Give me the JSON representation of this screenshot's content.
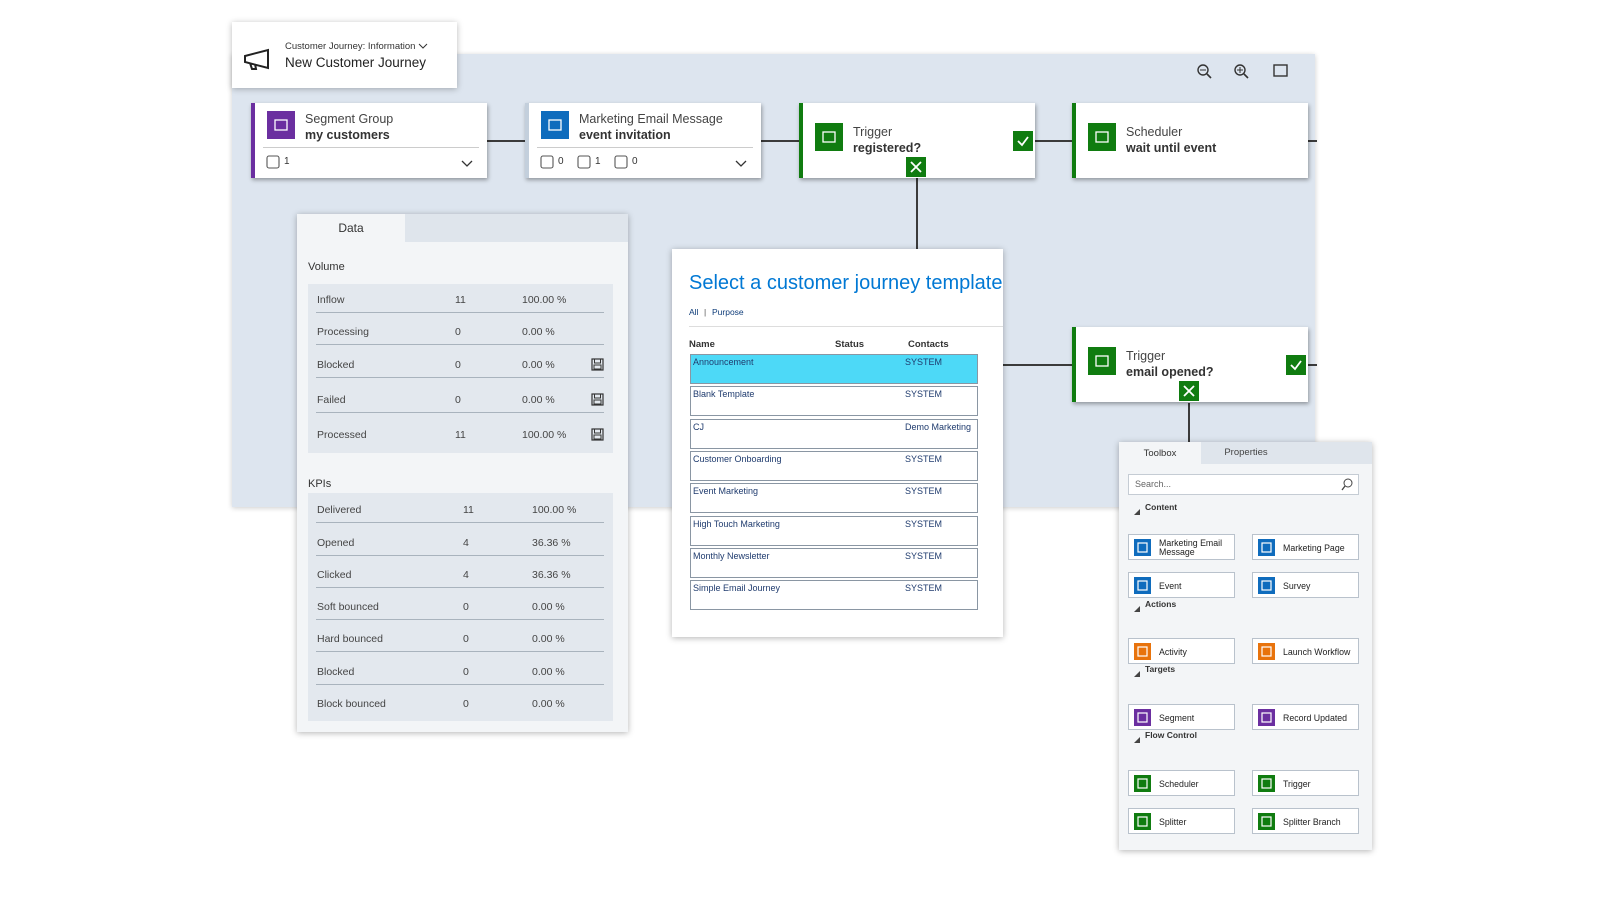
{
  "header": {
    "subtitle": "Customer Journey: Information",
    "title": "New Customer Journey"
  },
  "tiles": [
    {
      "type": "Segment Group",
      "name": "my customers",
      "stats": [
        "1"
      ]
    },
    {
      "type": "Marketing Email Message",
      "name": "event invitation",
      "stats": [
        "0",
        "1",
        "0"
      ]
    },
    {
      "type": "Trigger",
      "name": "registered?"
    },
    {
      "type": "Scheduler",
      "name": "wait until event"
    },
    {
      "type": "Trigger",
      "name": "email opened?"
    }
  ],
  "data_panel": {
    "tab": "Data",
    "volume": {
      "title": "Volume",
      "rows": [
        [
          "Inflow",
          "11",
          "100.00 %"
        ],
        [
          "Processing",
          "0",
          "0.00 %"
        ],
        [
          "Blocked",
          "0",
          "0.00 %"
        ],
        [
          "Failed",
          "0",
          "0.00 %"
        ],
        [
          "Processed",
          "11",
          "100.00 %"
        ]
      ]
    },
    "kpis": {
      "title": "KPIs",
      "rows": [
        [
          "Delivered",
          "11",
          "100.00 %"
        ],
        [
          "Opened",
          "4",
          "36.36 %"
        ],
        [
          "Clicked",
          "4",
          "36.36 %"
        ],
        [
          "Soft bounced",
          "0",
          "0.00 %"
        ],
        [
          "Hard bounced",
          "0",
          "0.00 %"
        ],
        [
          "Blocked",
          "0",
          "0.00 %"
        ],
        [
          "Block bounced",
          "0",
          "0.00 %"
        ]
      ]
    }
  },
  "template_dialog": {
    "title": "Select a customer journey template",
    "filters": [
      "All",
      "Purpose"
    ],
    "separator": "|",
    "columns": [
      "Name",
      "Status",
      "Contacts"
    ],
    "rows": [
      [
        "Announcement",
        "SYSTEM"
      ],
      [
        "Blank Template",
        "SYSTEM"
      ],
      [
        "CJ",
        "Demo Marketing"
      ],
      [
        "Customer Onboarding",
        "SYSTEM"
      ],
      [
        "Event Marketing",
        "SYSTEM"
      ],
      [
        "High Touch Marketing",
        "SYSTEM"
      ],
      [
        "Monthly Newsletter",
        "SYSTEM"
      ],
      [
        "Simple Email Journey",
        "SYSTEM"
      ]
    ]
  },
  "toolbox": {
    "tabs": [
      "Toolbox",
      "Properties"
    ],
    "search_placeholder": "Search...",
    "sections": [
      {
        "title": "Content",
        "items": [
          "Marketing Email Message",
          "Marketing Page",
          "Event",
          "Survey"
        ]
      },
      {
        "title": "Actions",
        "items": [
          "Activity",
          "Launch Workflow"
        ]
      },
      {
        "title": "Targets",
        "items": [
          "Segment",
          "Record Updated"
        ]
      },
      {
        "title": "Flow Control",
        "items": [
          "Scheduler",
          "Trigger",
          "Splitter",
          "Splitter Branch"
        ]
      }
    ]
  }
}
